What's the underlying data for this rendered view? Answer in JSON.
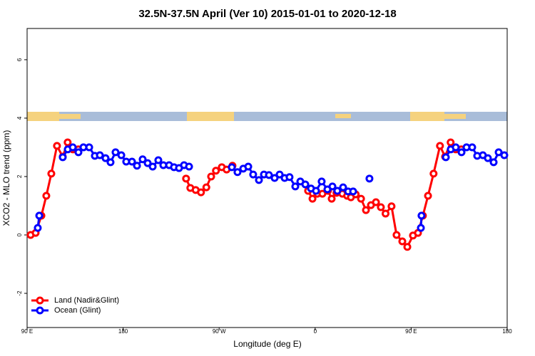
{
  "chart_data": {
    "type": "line",
    "title": "32.5N-37.5N April (Ver 10)   2015-01-01 to 2020-12-18",
    "xlabel": "Longitude (deg E)",
    "ylabel": "XCO2 - MLO trend (ppm)",
    "xlim": [
      90,
      540
    ],
    "ylim": [
      -3.17,
      7.07
    ],
    "xticks": [
      {
        "value": 90,
        "label": "90 E"
      },
      180,
      {
        "value": 270,
        "label": "90 W"
      },
      {
        "value": 360,
        "label": "0"
      },
      {
        "value": 450,
        "label": "90 E"
      },
      {
        "value": 540,
        "label": "180"
      }
    ],
    "yticks": [
      -2,
      0,
      2,
      4,
      6
    ],
    "legend": "bottomleft",
    "series": [
      {
        "name": "Land (Nadir&Glint)",
        "color": "#ff0000",
        "x": [
          93.3,
          98.0,
          103.4,
          108.0,
          112.7,
          118.0,
          123.4,
          128.0,
          133.0,
          138.0,
          190,
          239.0,
          243.0,
          248.0,
          253.0,
          258.0,
          262.5,
          267.0,
          272.5,
          277.0,
          282.5,
          320,
          353.4,
          357.5,
          362.0,
          366.8,
          372.0,
          375.5,
          380.0,
          385.5,
          390.0,
          393.5,
          398.0,
          403.0,
          407.6,
          412.3,
          417.0,
          421.6,
          426.0,
          431.6,
          436.3,
          441.7,
          446.4,
          451.7,
          456.4,
          461.0,
          465.8,
          471.0,
          477.0,
          481.8,
          487.0,
          491.8,
          497.0
        ],
        "values": [
          0.0,
          0.07,
          0.66,
          1.34,
          2.1,
          3.05,
          2.68,
          3.17,
          2.93,
          2.93,
          null,
          1.93,
          1.61,
          1.54,
          1.46,
          1.63,
          2.0,
          2.2,
          2.32,
          2.24,
          2.37,
          null,
          1.51,
          1.24,
          1.41,
          1.41,
          1.51,
          1.24,
          1.44,
          1.41,
          1.34,
          1.29,
          1.39,
          1.24,
          0.85,
          1.02,
          1.12,
          0.95,
          0.73,
          0.98,
          0.0,
          -0.22,
          -0.41,
          -0.02,
          0.07,
          0.66,
          1.34,
          2.1,
          3.05,
          2.68,
          3.17,
          2.93,
          2.93
        ]
      },
      {
        "name": "Ocean (Glint)",
        "color": "#0000ff",
        "x": [
          100.0,
          101.4,
          112,
          123.4,
          128.1,
          132.8,
          138.1,
          142.8,
          148.2,
          153.5,
          158.2,
          163.5,
          168.2,
          172.9,
          178.3,
          182.9,
          188.3,
          193.0,
          198.3,
          203.0,
          207.7,
          213.0,
          217.7,
          223.1,
          227.7,
          232.4,
          237.1,
          241.8,
          260,
          281.9,
          287.2,
          292.6,
          297.3,
          301.9,
          307.3,
          312.0,
          316.7,
          322.0,
          326.7,
          331.4,
          336.0,
          341.4,
          346.1,
          350.8,
          356.1,
          360.8,
          366.1,
          371.5,
          376.2,
          380.8,
          386.2,
          390.9,
          395.6,
          405,
          410.9,
          430,
          459.1,
          459.7,
          470,
          482.5,
          487.1,
          491.8,
          497.2,
          501.9,
          507.2,
          511.9,
          517.2,
          521.9,
          527.3,
          532.0,
          537.3
        ],
        "values": [
          0.24,
          0.66,
          null,
          2.66,
          2.93,
          3.0,
          2.83,
          3.0,
          3.0,
          2.71,
          2.73,
          2.63,
          2.49,
          2.83,
          2.73,
          2.51,
          2.51,
          2.37,
          2.59,
          2.46,
          2.34,
          2.56,
          2.39,
          2.39,
          2.32,
          2.29,
          2.39,
          2.34,
          null,
          2.32,
          2.15,
          2.27,
          2.34,
          2.07,
          1.88,
          2.07,
          2.05,
          1.95,
          2.07,
          1.95,
          1.98,
          1.66,
          1.83,
          1.73,
          1.59,
          1.51,
          1.83,
          1.56,
          1.66,
          1.51,
          1.63,
          1.49,
          1.49,
          null,
          1.93,
          null,
          0.24,
          0.66,
          null,
          2.66,
          2.93,
          3.0,
          2.83,
          3.0,
          3.0,
          2.71,
          2.73,
          2.63,
          2.49,
          2.83,
          2.73
        ]
      }
    ]
  }
}
